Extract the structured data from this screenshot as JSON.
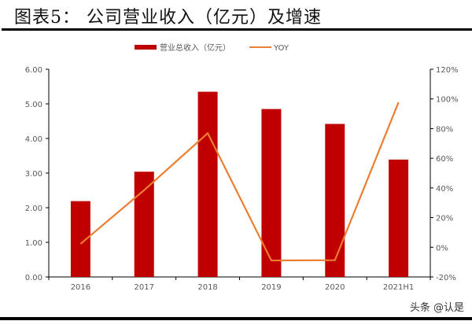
{
  "title": "图表5：  公司营业收入（亿元）及增速",
  "watermark": "头条 @认是",
  "chart_data": {
    "type": "bar+line",
    "categories": [
      "2016",
      "2017",
      "2018",
      "2019",
      "2020",
      "2021H1"
    ],
    "series": [
      {
        "name": "营业总收入（亿元）",
        "type": "bar",
        "axis": "left",
        "color": "#c00000",
        "values": [
          2.19,
          3.04,
          5.35,
          4.85,
          4.42,
          3.39
        ]
      },
      {
        "name": "YOY",
        "type": "line",
        "axis": "right",
        "color": "#ed7d31",
        "values": [
          2.3,
          38.5,
          76.9,
          -8.9,
          -8.7,
          97.7
        ]
      }
    ],
    "left_axis": {
      "ylim": [
        0,
        6
      ],
      "ticks": [
        "0.00",
        "1.00",
        "2.00",
        "3.00",
        "4.00",
        "5.00",
        "6.00"
      ]
    },
    "right_axis": {
      "ylim": [
        -20,
        120
      ],
      "ticks": [
        "-20%",
        "0%",
        "20%",
        "40%",
        "60%",
        "80%",
        "100%",
        "120%"
      ]
    },
    "legend": "top",
    "grid": false
  }
}
